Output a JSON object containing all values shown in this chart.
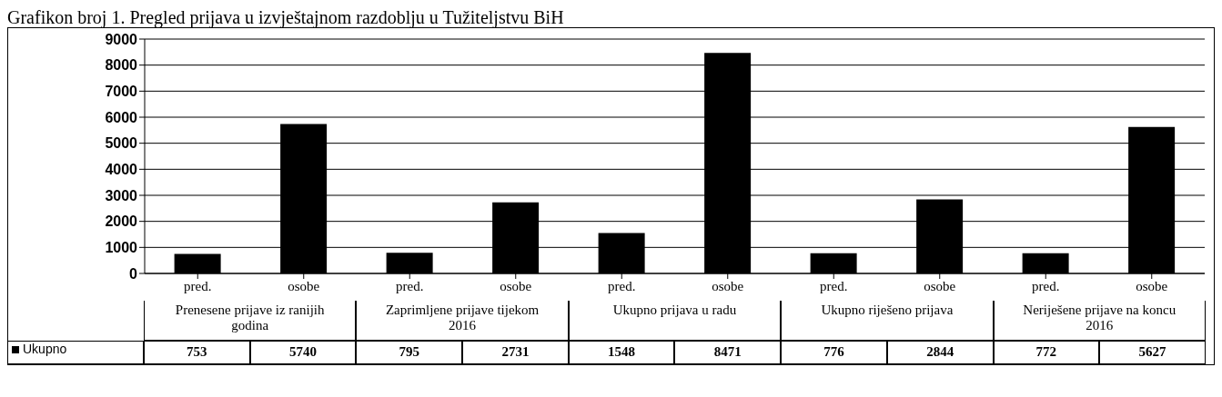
{
  "chart_data": {
    "type": "bar",
    "title": "Grafikon broj 1. Pregled prijava u izvještajnom razdoblju u Tužiteljstvu BiH",
    "categories": [
      "pred.",
      "osobe",
      "pred.",
      "osobe",
      "pred.",
      "osobe",
      "pred.",
      "osobe",
      "pred.",
      "osobe"
    ],
    "series": [
      {
        "name": "Ukupno",
        "color": "#000000",
        "values": [
          753,
          5740,
          795,
          2731,
          1548,
          8471,
          776,
          2844,
          772,
          5627
        ]
      }
    ],
    "annotations": [
      "Prenesene prijave iz ranijih godina",
      "Zaprimljene prijave tijekom 2016",
      "Ukupno prijava u radu",
      "Ukupno riješeno prijava",
      "Neriješene prijave na koncu 2016"
    ],
    "ylim": [
      0,
      9000
    ],
    "yticks": [
      0,
      1000,
      2000,
      3000,
      4000,
      5000,
      6000,
      7000,
      8000,
      9000
    ],
    "grid": "y",
    "data_labels": true
  }
}
